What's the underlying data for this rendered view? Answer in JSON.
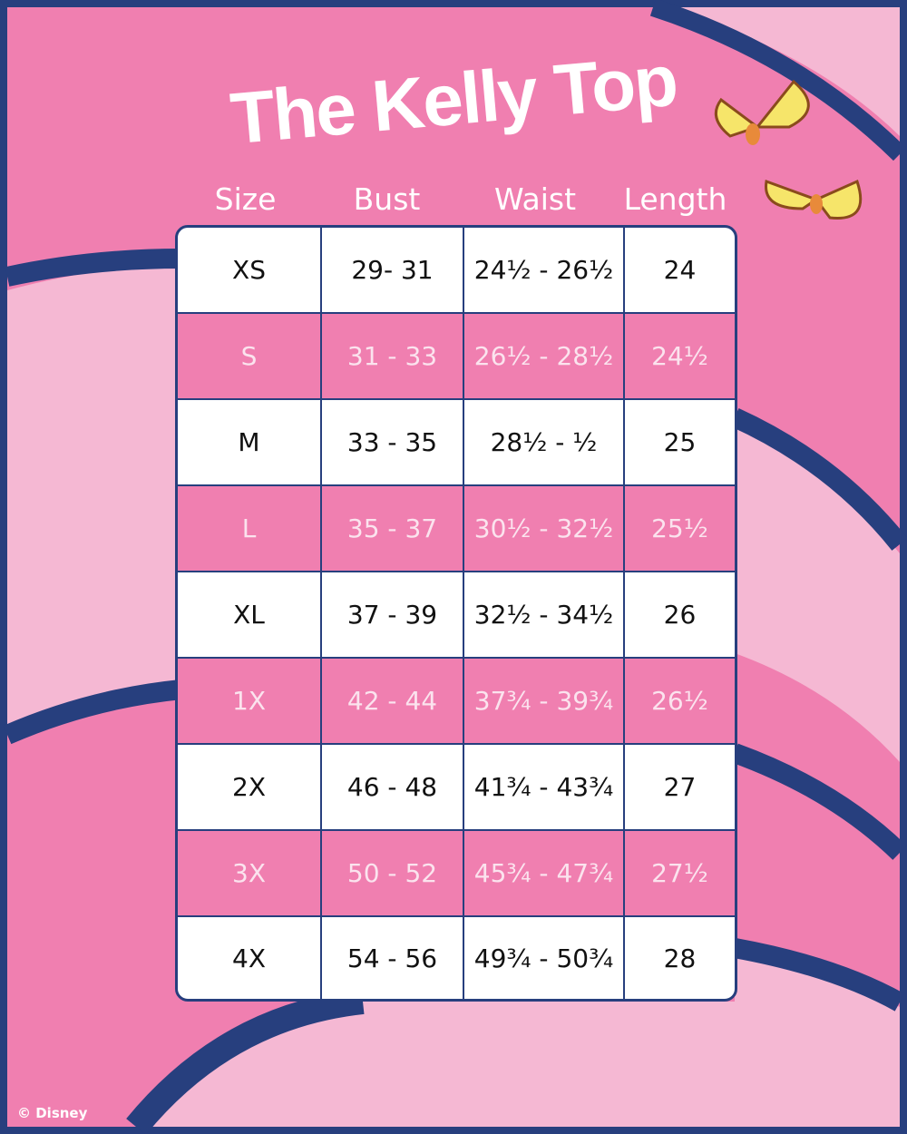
{
  "title": "The Kelly Top",
  "columns": [
    "Size",
    "Bust",
    "Waist",
    "Length"
  ],
  "rows": [
    [
      "XS",
      "29- 31",
      "24½ - 26½",
      "24"
    ],
    [
      "S",
      "31 - 33",
      "26½ - 28½",
      "24½"
    ],
    [
      "M",
      "33 - 35",
      "28½ - ½",
      "25"
    ],
    [
      "L",
      "35 - 37",
      "30½ - 32½",
      "25½"
    ],
    [
      "XL",
      "37 - 39",
      "32½ - 34½",
      "26"
    ],
    [
      "1X",
      "42 - 44",
      "37¾ - 39¾",
      "26½"
    ],
    [
      "2X",
      "46 - 48",
      "41¾ - 43¾",
      "27"
    ],
    [
      "3X",
      "50 - 52",
      "45¾ - 47¾",
      "27½"
    ],
    [
      "4X",
      "54 - 56",
      "49¾ - 50¾",
      "28"
    ]
  ],
  "copyright": "© Disney",
  "colors": {
    "pink": "#f07fb0",
    "light_pink": "#f5b8d3",
    "navy": "#273f7e"
  },
  "decorations": [
    "butterfly-icon",
    "butterfly-icon"
  ]
}
